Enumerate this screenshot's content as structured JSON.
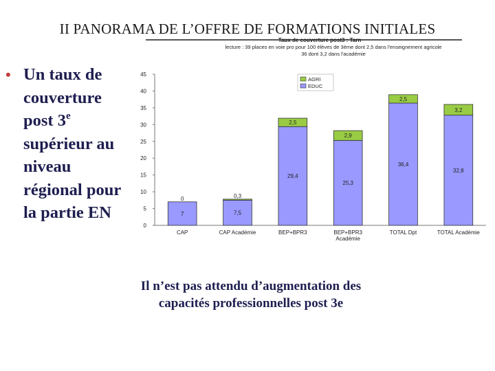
{
  "slide": {
    "title": "II PANORAMA DE L’OFFRE DE FORMATIONS INITIALES",
    "bullet_lines": [
      "Un taux de",
      "couverture",
      "post 3",
      "supérieur au",
      "niveau",
      "régional pour",
      "la partie EN"
    ],
    "bullet_sup": "e",
    "conclusion_lines": [
      "Il n’est pas attendu d’augmentation des",
      "capacités professionnelles post 3e"
    ],
    "colors": {
      "title": "#1a1a1a",
      "body_text": "#1e1e50",
      "bullet": "#c23a3a"
    }
  },
  "chart_data": {
    "type": "bar",
    "stacked": true,
    "title": "Taux de couverture post3 : Tarn",
    "subtitle_lines": [
      "lecture : 39 places en voie pro pour 100 élèves de 3ème dont 2,5 dans l'enseignement agricole",
      "36 dont 3,2 dans l'académie"
    ],
    "categories": [
      "CAP",
      "CAP Académie",
      "BEP+BPR3",
      "BEP+BPR3 Académie",
      "TOTAL Dpt",
      "TOTAL Académie"
    ],
    "category_label_lines": [
      [
        "CAP"
      ],
      [
        "CAP Académie"
      ],
      [
        "BEP+BPR3"
      ],
      [
        "BEP+BPR3",
        "Académie"
      ],
      [
        "TOTAL Dpt"
      ],
      [
        "TOTAL Académie"
      ]
    ],
    "series": [
      {
        "name": "EDUC",
        "color": "#9999ff",
        "values": [
          7,
          7.5,
          29.4,
          25.3,
          36.4,
          32.8
        ],
        "labels": [
          "7",
          "7,5",
          "29,4",
          "25,3",
          "36,4",
          "32,8"
        ]
      },
      {
        "name": "AGRI",
        "color": "#99cc44",
        "values": [
          0,
          0.3,
          2.5,
          2.9,
          2.5,
          3.2
        ],
        "labels": [
          "0",
          "0,3",
          "2,5",
          "2,9",
          "2,5",
          "3,2"
        ]
      }
    ],
    "legend_order": [
      "AGRI",
      "EDUC"
    ],
    "legend_position": "top-center",
    "ylim": [
      0,
      45
    ],
    "yticks": [
      0,
      5,
      10,
      15,
      20,
      25,
      30,
      35,
      40,
      45
    ],
    "grid": false
  }
}
